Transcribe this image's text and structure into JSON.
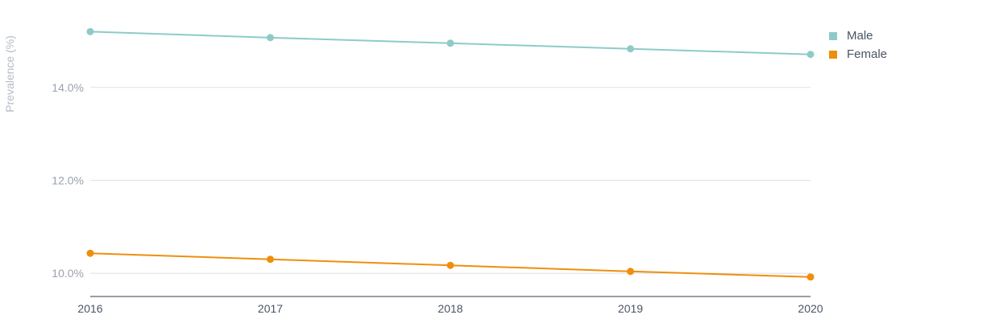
{
  "chart_data": {
    "type": "line",
    "title": "",
    "xlabel": "",
    "ylabel": "Prevalence (%)",
    "x": [
      "2016",
      "2017",
      "2018",
      "2019",
      "2020"
    ],
    "ylim": [
      9.5,
      15.5
    ],
    "yticks": [
      10.0,
      12.0,
      14.0
    ],
    "ytick_labels": [
      "10.0%",
      "12.0%",
      "14.0%"
    ],
    "grid": true,
    "legend": "top-right",
    "series": [
      {
        "name": "Male",
        "color": "#8ecbc8",
        "values": [
          15.2,
          15.07,
          14.95,
          14.83,
          14.71
        ]
      },
      {
        "name": "Female",
        "color": "#ef8e0d",
        "values": [
          10.43,
          10.3,
          10.17,
          10.04,
          9.92
        ]
      }
    ]
  }
}
